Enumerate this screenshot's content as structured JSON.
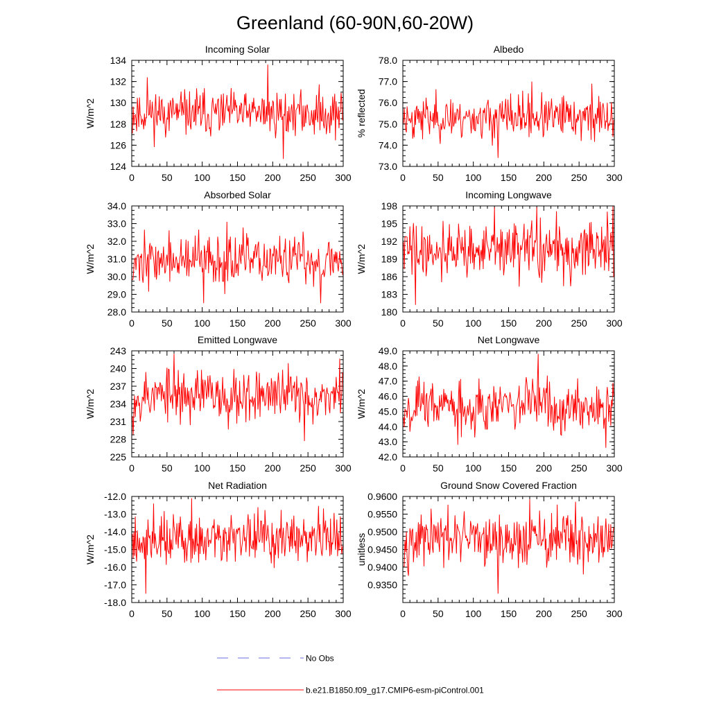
{
  "figure_title": "Greenland (60-90N,60-20W)",
  "legend": {
    "obs_label": "No Obs",
    "model_label": "b.e21.B1850.f09_g17.CMIP6-esm-piControl.001",
    "obs_color": "#6a6adc",
    "model_color": "#ff0000"
  },
  "chart_data": [
    {
      "type": "line",
      "title": "Incoming Solar",
      "ylabel": "W/m^2",
      "xlim": [
        0,
        300
      ],
      "ylim": [
        124,
        134
      ],
      "xticks": [
        "0",
        "50",
        "100",
        "150",
        "200",
        "250",
        "300"
      ],
      "yticks": [
        "124",
        "126",
        "128",
        "130",
        "132",
        "134"
      ],
      "series": [
        {
          "name": "b.e21.B1850.f09_g17.CMIP6-esm-piControl.001",
          "x_start": 1,
          "x_end": 299,
          "mean": 129.0,
          "sd": 1.05,
          "extremes": [
            [
              193,
              133.6
            ],
            [
              215,
              124.7
            ],
            [
              22,
              132.4
            ]
          ],
          "seed": 11
        }
      ]
    },
    {
      "type": "line",
      "title": "Albedo",
      "ylabel": "% reflected",
      "xlim": [
        0,
        300
      ],
      "ylim": [
        73.0,
        78.0
      ],
      "xticks": [
        "0",
        "50",
        "100",
        "150",
        "200",
        "250",
        "300"
      ],
      "yticks": [
        "73.0",
        "74.0",
        "75.0",
        "76.0",
        "77.0",
        "78.0"
      ],
      "series": [
        {
          "name": "b.e21.B1850.f09_g17.CMIP6-esm-piControl.001",
          "x_start": 1,
          "x_end": 299,
          "mean": 75.3,
          "sd": 0.5,
          "extremes": [
            [
              135,
              73.4
            ],
            [
              183,
              77.0
            ],
            [
              268,
              76.9
            ]
          ],
          "seed": 23
        }
      ]
    },
    {
      "type": "line",
      "title": "Absorbed Solar",
      "ylabel": "W/m^2",
      "xlim": [
        0,
        300
      ],
      "ylim": [
        28.0,
        34.0
      ],
      "xticks": [
        "0",
        "50",
        "100",
        "150",
        "200",
        "250",
        "300"
      ],
      "yticks": [
        "28.0",
        "29.0",
        "30.0",
        "31.0",
        "32.0",
        "33.0",
        "34.0"
      ],
      "series": [
        {
          "name": "b.e21.B1850.f09_g17.CMIP6-esm-piControl.001",
          "x_start": 1,
          "x_end": 299,
          "mean": 30.9,
          "sd": 0.7,
          "extremes": [
            [
              135,
              33.1
            ],
            [
              102,
              28.5
            ],
            [
              268,
              28.5
            ]
          ],
          "seed": 37
        }
      ]
    },
    {
      "type": "line",
      "title": "Incoming Longwave",
      "ylabel": "W/m^2",
      "xlim": [
        0,
        300
      ],
      "ylim": [
        180,
        198
      ],
      "xticks": [
        "0",
        "50",
        "100",
        "150",
        "200",
        "250",
        "300"
      ],
      "yticks": [
        "180",
        "183",
        "186",
        "189",
        "192",
        "195",
        "198"
      ],
      "series": [
        {
          "name": "b.e21.B1850.f09_g17.CMIP6-esm-piControl.001",
          "x_start": 1,
          "x_end": 299,
          "mean": 190.5,
          "sd": 2.4,
          "extremes": [
            [
              18,
              181.2
            ],
            [
              298,
              198
            ],
            [
              130,
              197.8
            ],
            [
              190,
              197.8
            ]
          ],
          "seed": 41
        }
      ]
    },
    {
      "type": "line",
      "title": "Emitted Longwave",
      "ylabel": "W/m^2",
      "xlim": [
        0,
        300
      ],
      "ylim": [
        225,
        243
      ],
      "xticks": [
        "0",
        "50",
        "100",
        "150",
        "200",
        "250",
        "300"
      ],
      "yticks": [
        "225",
        "228",
        "231",
        "234",
        "237",
        "240",
        "243"
      ],
      "series": [
        {
          "name": "b.e21.B1850.f09_g17.CMIP6-esm-piControl.001",
          "x_start": 1,
          "x_end": 299,
          "mean": 235.5,
          "sd": 2.3,
          "extremes": [
            [
              245,
              227.7
            ],
            [
              60,
              242.5
            ],
            [
              2,
              228.8
            ]
          ],
          "seed": 53
        }
      ]
    },
    {
      "type": "line",
      "title": "Net Longwave",
      "ylabel": "W/m^2",
      "xlim": [
        0,
        300
      ],
      "ylim": [
        42.0,
        49.0
      ],
      "xticks": [
        "0",
        "50",
        "100",
        "150",
        "200",
        "250",
        "300"
      ],
      "yticks": [
        "42.0",
        "43.0",
        "44.0",
        "45.0",
        "46.0",
        "47.0",
        "48.0",
        "49.0"
      ],
      "series": [
        {
          "name": "b.e21.B1850.f09_g17.CMIP6-esm-piControl.001",
          "x_start": 1,
          "x_end": 299,
          "mean": 45.4,
          "sd": 0.85,
          "extremes": [
            [
              192,
              48.8
            ],
            [
              288,
              42.6
            ],
            [
              78,
              42.8
            ]
          ],
          "seed": 67
        }
      ]
    },
    {
      "type": "line",
      "title": "Net Radiation",
      "ylabel": "W/m^2",
      "xlim": [
        0,
        300
      ],
      "ylim": [
        -18.0,
        -12.0
      ],
      "xticks": [
        "0",
        "50",
        "100",
        "150",
        "200",
        "250",
        "300"
      ],
      "yticks": [
        "-18.0",
        "-17.0",
        "-16.0",
        "-15.0",
        "-14.0",
        "-13.0",
        "-12.0"
      ],
      "series": [
        {
          "name": "b.e21.B1850.f09_g17.CMIP6-esm-piControl.001",
          "x_start": 1,
          "x_end": 299,
          "mean": -14.4,
          "sd": 0.75,
          "extremes": [
            [
              20,
              -17.5
            ],
            [
              85,
              -12.1
            ],
            [
              31,
              -12.4
            ]
          ],
          "seed": 79
        }
      ]
    },
    {
      "type": "line",
      "title": "Ground Snow Covered Fraction",
      "ylabel": "unitless",
      "xlim": [
        0,
        300
      ],
      "ylim": [
        0.93,
        0.96
      ],
      "xticks": [
        "0",
        "50",
        "100",
        "150",
        "200",
        "250",
        "300"
      ],
      "yticks": [
        "0.9350",
        "0.9400",
        "0.9450",
        "0.9500",
        "0.9550",
        "0.9600"
      ],
      "series": [
        {
          "name": "b.e21.B1850.f09_g17.CMIP6-esm-piControl.001",
          "x_start": 1,
          "x_end": 299,
          "mean": 0.9477,
          "sd": 0.0038,
          "extremes": [
            [
              135,
              0.9325
            ],
            [
              180,
              0.9592
            ],
            [
              245,
              0.9585
            ]
          ],
          "seed": 97
        }
      ]
    }
  ]
}
